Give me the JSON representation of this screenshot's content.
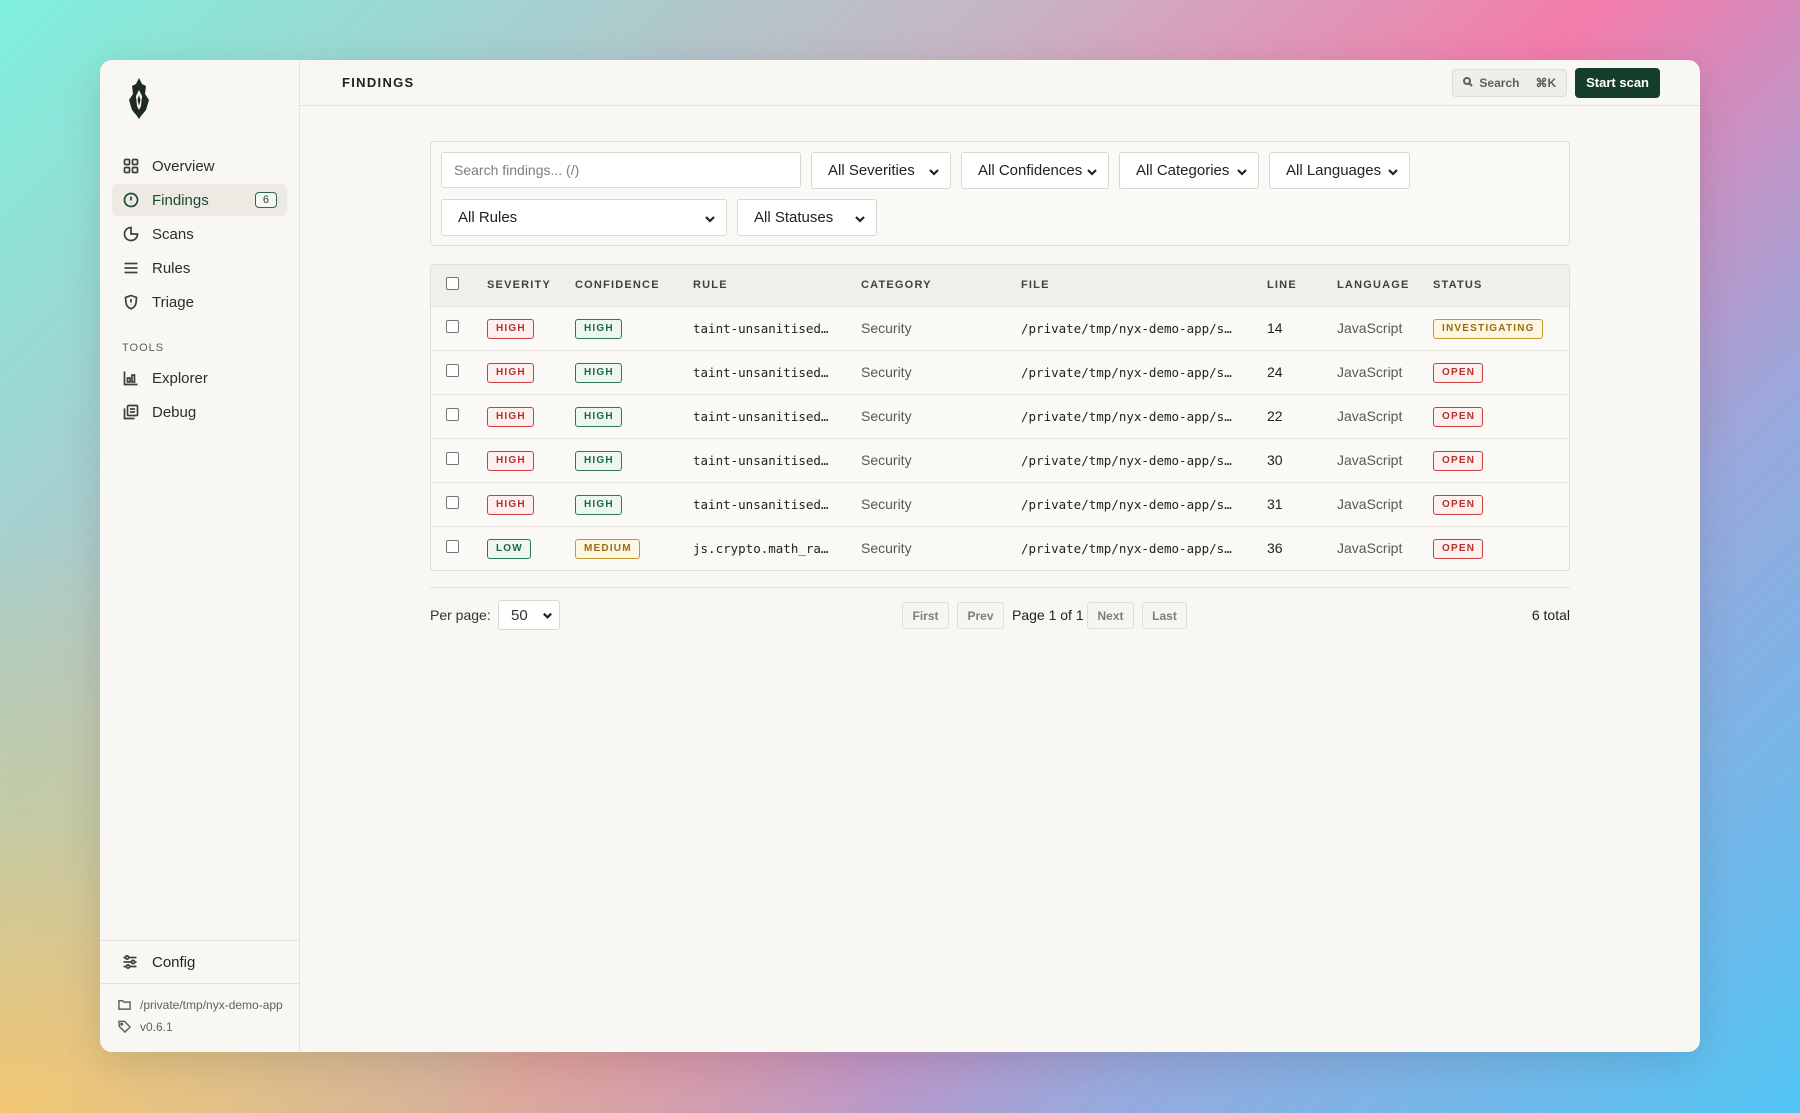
{
  "sidebar": {
    "items": [
      {
        "label": "Overview",
        "icon": "grid-icon"
      },
      {
        "label": "Findings",
        "icon": "alert-circle-icon",
        "badge": "6",
        "active": true
      },
      {
        "label": "Scans",
        "icon": "pie-icon"
      },
      {
        "label": "Rules",
        "icon": "list-icon"
      },
      {
        "label": "Triage",
        "icon": "shield-icon"
      }
    ],
    "tools_label": "TOOLS",
    "tools": [
      {
        "label": "Explorer",
        "icon": "chart-icon"
      },
      {
        "label": "Debug",
        "icon": "stack-icon"
      }
    ],
    "config_label": "Config",
    "path": "/private/tmp/nyx-demo-app",
    "version": "v0.6.1"
  },
  "header": {
    "title": "FINDINGS",
    "search_label": "Search",
    "search_shortcut": "⌘K",
    "start_scan_label": "Start scan"
  },
  "filters": {
    "search_placeholder": "Search findings... (/)",
    "severity": "All Severities",
    "confidence": "All Confidences",
    "category": "All Categories",
    "language": "All Languages",
    "rule": "All Rules",
    "status": "All Statuses"
  },
  "table": {
    "columns": [
      "SEVERITY",
      "CONFIDENCE",
      "RULE",
      "CATEGORY",
      "FILE",
      "LINE",
      "LANGUAGE",
      "STATUS"
    ],
    "rows": [
      {
        "severity": "HIGH",
        "confidence": "HIGH",
        "rule": "taint-unsanitised…",
        "category": "Security",
        "file": "/private/tmp/nyx-demo-app/s…",
        "line": "14",
        "language": "JavaScript",
        "status": "INVESTIGATING"
      },
      {
        "severity": "HIGH",
        "confidence": "HIGH",
        "rule": "taint-unsanitised…",
        "category": "Security",
        "file": "/private/tmp/nyx-demo-app/s…",
        "line": "24",
        "language": "JavaScript",
        "status": "OPEN"
      },
      {
        "severity": "HIGH",
        "confidence": "HIGH",
        "rule": "taint-unsanitised…",
        "category": "Security",
        "file": "/private/tmp/nyx-demo-app/s…",
        "line": "22",
        "language": "JavaScript",
        "status": "OPEN"
      },
      {
        "severity": "HIGH",
        "confidence": "HIGH",
        "rule": "taint-unsanitised…",
        "category": "Security",
        "file": "/private/tmp/nyx-demo-app/s…",
        "line": "30",
        "language": "JavaScript",
        "status": "OPEN"
      },
      {
        "severity": "HIGH",
        "confidence": "HIGH",
        "rule": "taint-unsanitised…",
        "category": "Security",
        "file": "/private/tmp/nyx-demo-app/s…",
        "line": "31",
        "language": "JavaScript",
        "status": "OPEN"
      },
      {
        "severity": "LOW",
        "confidence": "MEDIUM",
        "rule": "js.crypto.math_ra…",
        "category": "Security",
        "file": "/private/tmp/nyx-demo-app/s…",
        "line": "36",
        "language": "JavaScript",
        "status": "OPEN"
      }
    ]
  },
  "pager": {
    "per_page_label": "Per page:",
    "per_page_value": "50",
    "first": "First",
    "prev": "Prev",
    "page_label": "Page 1 of 1",
    "next": "Next",
    "last": "Last",
    "total": "6 total"
  },
  "colors": {
    "accent": "#153d2c",
    "danger": "#c9413f",
    "success": "#2b7a52",
    "warning": "#c49a2c"
  }
}
